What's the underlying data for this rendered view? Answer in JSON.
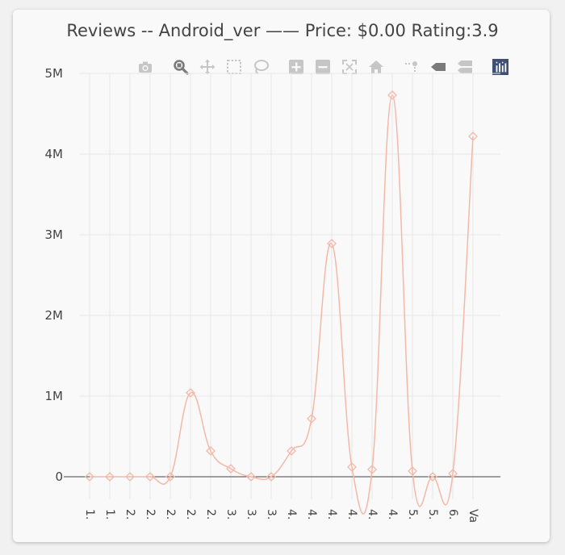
{
  "title": "Reviews -- Android_ver —— Price: $0.00 Rating:3.9",
  "modebar": [
    {
      "name": "camera-icon",
      "label": "Download plot as a png"
    },
    {
      "name": "zoom-icon",
      "label": "Zoom"
    },
    {
      "name": "pan-icon",
      "label": "Pan"
    },
    {
      "name": "box-select-icon",
      "label": "Box Select"
    },
    {
      "name": "lasso-select-icon",
      "label": "Lasso Select"
    },
    {
      "name": "zoom-in-icon",
      "label": "Zoom in"
    },
    {
      "name": "zoom-out-icon",
      "label": "Zoom out"
    },
    {
      "name": "autoscale-icon",
      "label": "Autoscale"
    },
    {
      "name": "home-icon",
      "label": "Reset axes"
    },
    {
      "name": "spike-lines-icon",
      "label": "Toggle Spike Lines"
    },
    {
      "name": "hover-closest-icon",
      "label": "Show closest data on hover"
    },
    {
      "name": "hover-compare-icon",
      "label": "Compare data on hover"
    },
    {
      "name": "plotly-logo-icon",
      "label": "Produced with Plotly"
    }
  ],
  "colors": {
    "line": "#f4b8a8",
    "icon": "#c6c6c6",
    "icon_active": "#7a7a7a",
    "logo": "#3f4f75",
    "grid": "#e6e6e6",
    "zero_line": "#444444",
    "text": "#444444"
  },
  "chart_data": {
    "type": "line",
    "line_shape": "spline",
    "marker": "diamond-open",
    "title": "Reviews -- Android_ver —— Price: $0.00 Rating:3.9",
    "xlabel": "",
    "ylabel": "",
    "categories": [
      "1.",
      "1.",
      "2.",
      "2.",
      "2.",
      "2.",
      "2.",
      "3.",
      "3.",
      "3.",
      "4.",
      "4.",
      "4.",
      "4.",
      "4.",
      "4.",
      "5.",
      "5.",
      "6.",
      "Va"
    ],
    "series": [
      {
        "values": [
          0,
          0,
          0,
          0,
          0,
          1040000,
          320000,
          100000,
          0,
          0,
          320000,
          720000,
          2890000,
          120000,
          90000,
          4730000,
          70000,
          0,
          40000,
          4220000
        ]
      }
    ],
    "ylim": [
      -280000,
      5000000
    ],
    "yticks": [
      0,
      1000000,
      2000000,
      3000000,
      4000000,
      5000000
    ],
    "ytick_labels": [
      "0",
      "1M",
      "2M",
      "3M",
      "4M",
      "5M"
    ],
    "grid": true,
    "legend": false
  }
}
